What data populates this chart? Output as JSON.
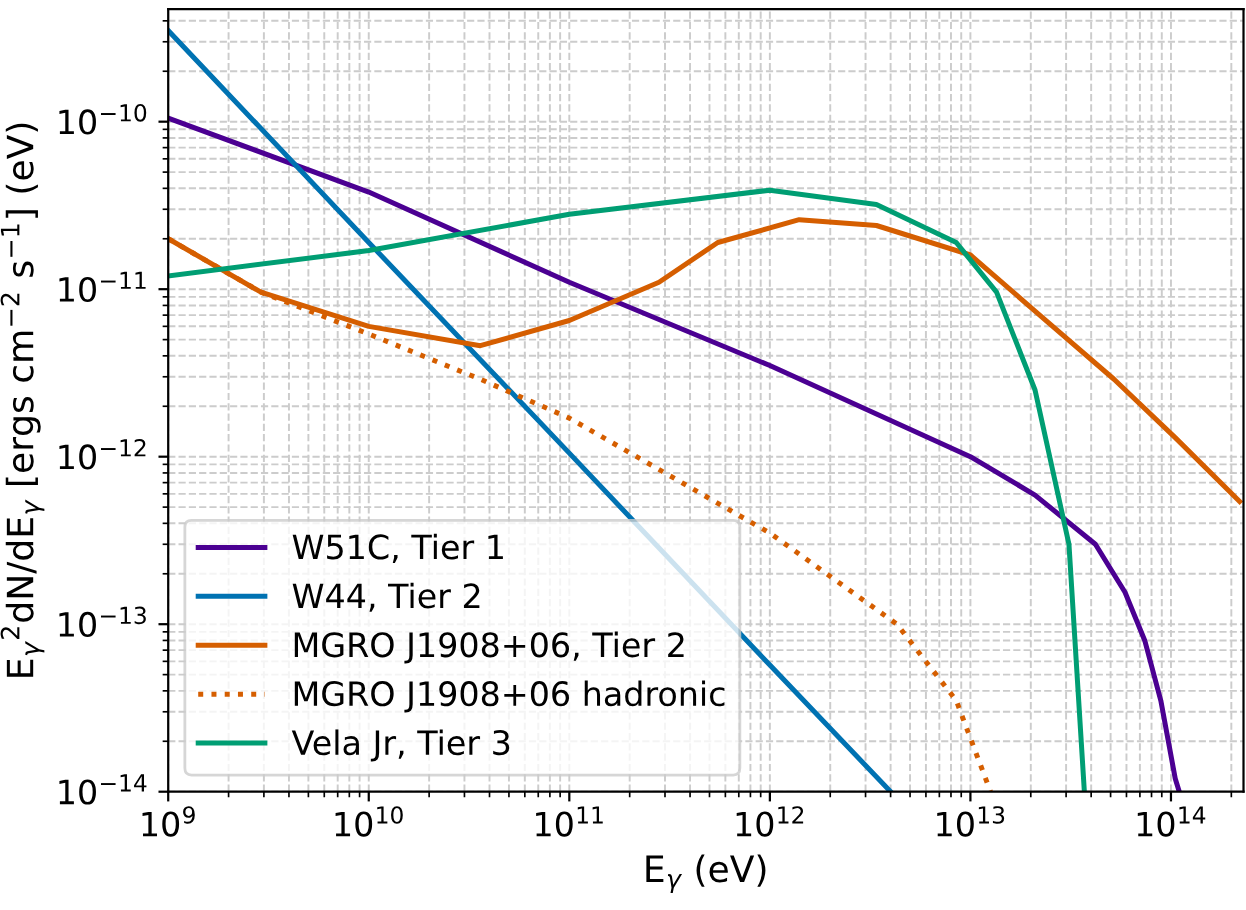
{
  "chart_data": {
    "type": "line",
    "xlabel": "E$_{γ}$ (eV)",
    "ylabel": "E$_{γ}$$^{2}$dN/dE$_{γ}$ [ergs cm$^{−2}$ s$^{−1}$] (eV)",
    "log": "xy",
    "grid": true,
    "legend": "bottom left",
    "xlim": [
      1000000000.0,
      230000000000000.0
    ],
    "ylim": [
      1e-14,
      4.7e-10
    ],
    "xticks": [
      {
        "value": 1000000000.0,
        "label": "10$^{9}$"
      },
      {
        "value": 10000000000.0,
        "label": "10$^{10}$"
      },
      {
        "value": 100000000000.0,
        "label": "10$^{11}$"
      },
      {
        "value": 1000000000000.0,
        "label": "10$^{12}$"
      },
      {
        "value": 10000000000000.0,
        "label": "10$^{13}$"
      },
      {
        "value": 100000000000000.0,
        "label": "10$^{14}$"
      }
    ],
    "yticks": [
      {
        "value": 1e-14,
        "label": "10$^{−14}$"
      },
      {
        "value": 1e-13,
        "label": "10$^{−13}$"
      },
      {
        "value": 1e-12,
        "label": "10$^{−12}$"
      },
      {
        "value": 1e-11,
        "label": "10$^{−11}$"
      },
      {
        "value": 1e-10,
        "label": "10$^{−10}$"
      }
    ],
    "series": [
      {
        "name": "W51C, Tier 1",
        "color": "#4b0092",
        "line_style": "solid",
        "x": [
          1000000000.0,
          10000000000.0,
          100000000000.0,
          1000000000000.0,
          10000000000000.0,
          21000000000000.0,
          42000000000000.0,
          59000000000000.0,
          74000000000000.0,
          89000000000000.0,
          105000000000000.0,
          110000000000000.0
        ],
        "values": [
          1.05e-10,
          3.8e-11,
          1.1e-11,
          3.5e-12,
          1e-12,
          5.9e-13,
          3e-13,
          1.55e-13,
          8e-14,
          3.5e-14,
          1.2e-14,
          1e-14
        ]
      },
      {
        "name": "W44, Tier 2",
        "color": "#0072b2",
        "line_style": "solid",
        "x": [
          1000000000.0,
          10000000000.0,
          100000000000.0,
          1000000000000.0,
          4000000000000.0
        ],
        "values": [
          3.5e-10,
          1.9e-11,
          1.05e-12,
          5.7e-14,
          1e-14
        ]
      },
      {
        "name": "MGRO J1908+06, Tier 2",
        "color": "#d55e00",
        "line_style": "solid",
        "x": [
          1000000000.0,
          2900000000.0,
          10000000000.0,
          36000000000.0,
          100000000000.0,
          280000000000.0,
          550000000000.0,
          1400000000000.0,
          3400000000000.0,
          10000000000000.0,
          21000000000000.0,
          52000000000000.0,
          105000000000000.0,
          220000000000000.0
        ],
        "values": [
          2e-11,
          9.6e-12,
          6e-12,
          4.6e-12,
          6.5e-12,
          1.1e-11,
          1.9e-11,
          2.6e-11,
          2.4e-11,
          1.6e-11,
          7.4e-12,
          2.9e-12,
          1.3e-12,
          5.4e-13
        ]
      },
      {
        "name": "MGRO J1908+06 hadronic",
        "color": "#d55e00",
        "line_style": "dotted",
        "x": [
          1000000000.0,
          2900000000.0,
          10000000000.0,
          36000000000.0,
          100000000000.0,
          1000000000000.0,
          4300000000000.0,
          8500000000000.0,
          12600000000000.0
        ],
        "values": [
          2e-11,
          9.6e-12,
          5.4e-12,
          2.9e-12,
          1.7e-12,
          3.5e-13,
          1e-13,
          3.5e-14,
          1e-14
        ]
      },
      {
        "name": "Vela Jr, Tier 3",
        "color": "#009e73",
        "line_style": "solid",
        "x": [
          1000000000.0,
          10000000000.0,
          100000000000.0,
          1000000000000.0,
          3400000000000.0,
          8500000000000.0,
          13500000000000.0,
          21000000000000.0,
          31000000000000.0,
          37000000000000.0
        ],
        "values": [
          1.2e-11,
          1.7e-11,
          2.8e-11,
          3.9e-11,
          3.2e-11,
          1.9e-11,
          9.6e-12,
          2.5e-12,
          3e-13,
          1e-14
        ]
      }
    ]
  }
}
